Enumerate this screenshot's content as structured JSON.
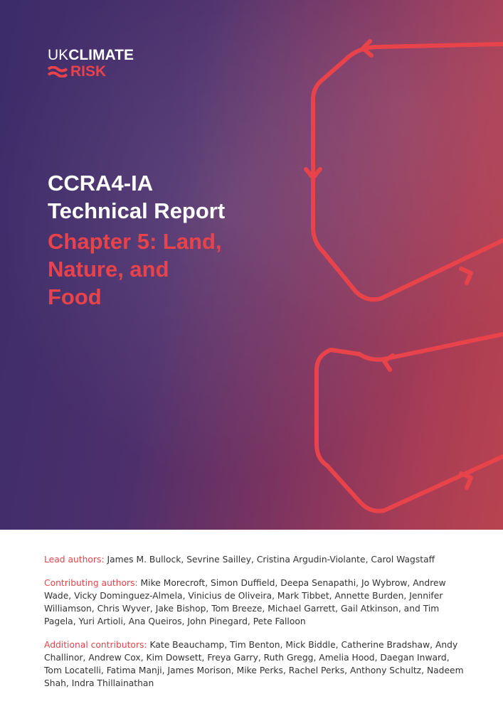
{
  "logo": {
    "uk": "UK",
    "climate": "CLIMATE",
    "risk": "RISK"
  },
  "title": {
    "lines": [
      "CCRA4-IA",
      "Technical Report"
    ]
  },
  "chapter": {
    "lines": [
      "Chapter 5: Land,",
      "Nature, and",
      "Food"
    ]
  },
  "credits": [
    {
      "label": "Lead authors:",
      "names": "James M. Bullock, Sevrine Sailley, Cristina Argudin-Violante, Carol Wagstaff"
    },
    {
      "label": "Contributing authors:",
      "names": "Mike Morecroft, Simon Duffield, Deepa Senapathi, Jo Wybrow, Andrew Wade, Vicky Dominguez-Almela, Vinicius de Oliveira, Mark Tibbet, Annette Burden, Jennifer Williamson, Chris Wyver, Jake Bishop, Tom Breeze, Michael Garrett, Gail Atkinson, and Tim Pagela, Yuri Artioli, Ana Queiros, John Pinegard, Pete Falloon"
    },
    {
      "label": "Additional contributors:",
      "names": "Kate Beauchamp, Tim Benton, Mick Biddle, Catherine Bradshaw, Andy Challinor, Andrew Cox, Kim Dowsett, Freya Garry, Ruth Gregg, Amelia Hood, Daegan Inward, Tom Locatelli, Fatima Manji, James Morison, Mike Perks, Rachel Perks, Anthony Schultz, Nadeem Shah, Indra Thillainathan"
    }
  ]
}
